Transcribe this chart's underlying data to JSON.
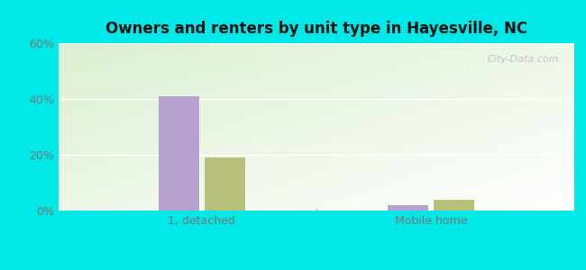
{
  "title": "Owners and renters by unit type in Hayesville, NC",
  "categories": [
    "1, detached",
    "Mobile home"
  ],
  "owner_values": [
    41.0,
    2.0
  ],
  "renter_values": [
    19.0,
    4.0
  ],
  "owner_color": "#b8a0d0",
  "renter_color": "#b8c07a",
  "ylim": [
    0,
    60
  ],
  "yticks": [
    0,
    20,
    40,
    60
  ],
  "yticklabels": [
    "0%",
    "20%",
    "40%",
    "60%"
  ],
  "bg_outer": "#00e8e8",
  "watermark": "City-Data.com",
  "bar_width": 0.28,
  "title_fontsize": 12
}
